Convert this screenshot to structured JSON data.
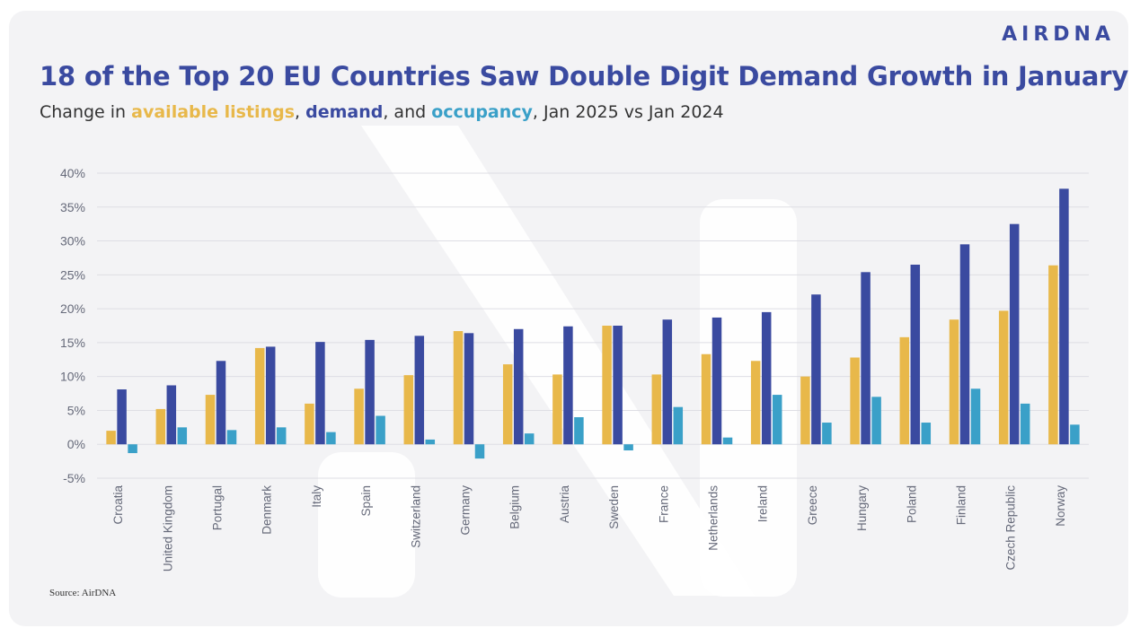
{
  "logo": "AIRDNA",
  "title": "18 of the Top 20 EU Countries Saw Double Digit Demand Growth in January",
  "subtitle": {
    "prefix": "Change in ",
    "listings": "available listings",
    "sep1": ", ",
    "demand": "demand",
    "sep2": ", and ",
    "occupancy": "occupancy",
    "suffix": ", Jan 2025 vs Jan 2024"
  },
  "source": "Source: AirDNA",
  "colors": {
    "listings": "#e8b84a",
    "demand": "#3a4aa0",
    "occupancy": "#3aa0c8"
  },
  "chart_data": {
    "type": "bar",
    "title": "18 of the Top 20 EU Countries Saw Double Digit Demand Growth in January",
    "xlabel": "",
    "ylabel": "",
    "ylim": [
      -5,
      40
    ],
    "yticks": [
      -5,
      0,
      5,
      10,
      15,
      20,
      25,
      30,
      35,
      40
    ],
    "ytick_labels": [
      "-5%",
      "0%",
      "5%",
      "10%",
      "15%",
      "20%",
      "25%",
      "30%",
      "35%",
      "40%"
    ],
    "grid": true,
    "categories": [
      "Croatia",
      "United Kingdom",
      "Portugal",
      "Denmark",
      "Italy",
      "Spain",
      "Switzerland",
      "Germany",
      "Belgium",
      "Austria",
      "Sweden",
      "France",
      "Netherlands",
      "Ireland",
      "Greece",
      "Hungary",
      "Poland",
      "Finland",
      "Czech Republic",
      "Norway"
    ],
    "series": [
      {
        "name": "available listings",
        "color": "#e8b84a",
        "values": [
          2.0,
          5.2,
          7.3,
          14.2,
          6.0,
          8.2,
          10.2,
          16.7,
          11.8,
          10.3,
          17.5,
          10.3,
          13.3,
          12.3,
          10.0,
          12.8,
          15.8,
          18.4,
          19.7,
          26.4
        ]
      },
      {
        "name": "demand",
        "color": "#3a4aa0",
        "values": [
          8.1,
          8.7,
          12.3,
          14.4,
          15.1,
          15.4,
          16.0,
          16.4,
          17.0,
          17.4,
          17.5,
          18.4,
          18.7,
          19.5,
          22.1,
          25.4,
          26.5,
          29.5,
          32.5,
          37.7
        ]
      },
      {
        "name": "occupancy",
        "color": "#3aa0c8",
        "values": [
          -1.3,
          2.5,
          2.1,
          2.5,
          1.8,
          4.2,
          0.7,
          -2.1,
          1.6,
          4.0,
          -0.9,
          5.5,
          1.0,
          7.3,
          3.2,
          7.0,
          3.2,
          8.2,
          6.0,
          2.9
        ]
      }
    ]
  }
}
